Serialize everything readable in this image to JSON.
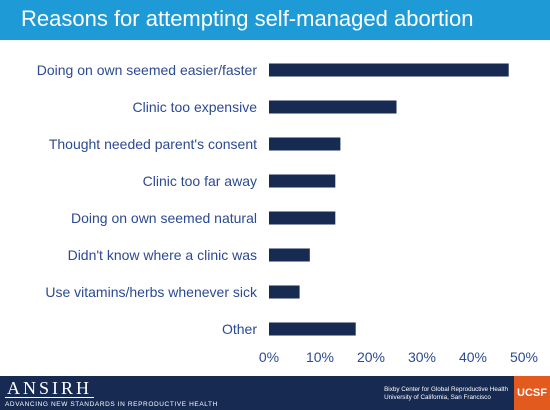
{
  "header": {
    "title": "Reasons for attempting self-managed abortion"
  },
  "footer": {
    "logo_mark": "ANSIRH",
    "logo_tagline": "ADVANCING NEW STANDARDS IN REPRODUCTIVE HEALTH",
    "org_line1": "Bixby Center for Global Reproductive Health",
    "org_line2": "University of California, San Francisco",
    "badge": "UCSF"
  },
  "colors": {
    "header": "#1e9ad6",
    "bar": "#162a52",
    "label": "#2c4a92",
    "footer": "#162a52",
    "badge": "#e35a1f"
  },
  "chart_data": {
    "type": "bar",
    "orientation": "horizontal",
    "title": "Reasons for attempting self-managed abortion",
    "categories": [
      "Doing on own seemed easier/faster",
      "Clinic too expensive",
      "Thought needed parent's consent",
      "Clinic too far away",
      "Doing on own seemed natural",
      "Didn't know where a clinic was",
      "Use vitamins/herbs whenever sick",
      "Other"
    ],
    "values": [
      47,
      25,
      14,
      13,
      13,
      8,
      6,
      17
    ],
    "xlim": [
      0,
      50
    ],
    "xticks": [
      "0%",
      "10%",
      "20%",
      "30%",
      "40%",
      "50%"
    ],
    "grid": false
  }
}
